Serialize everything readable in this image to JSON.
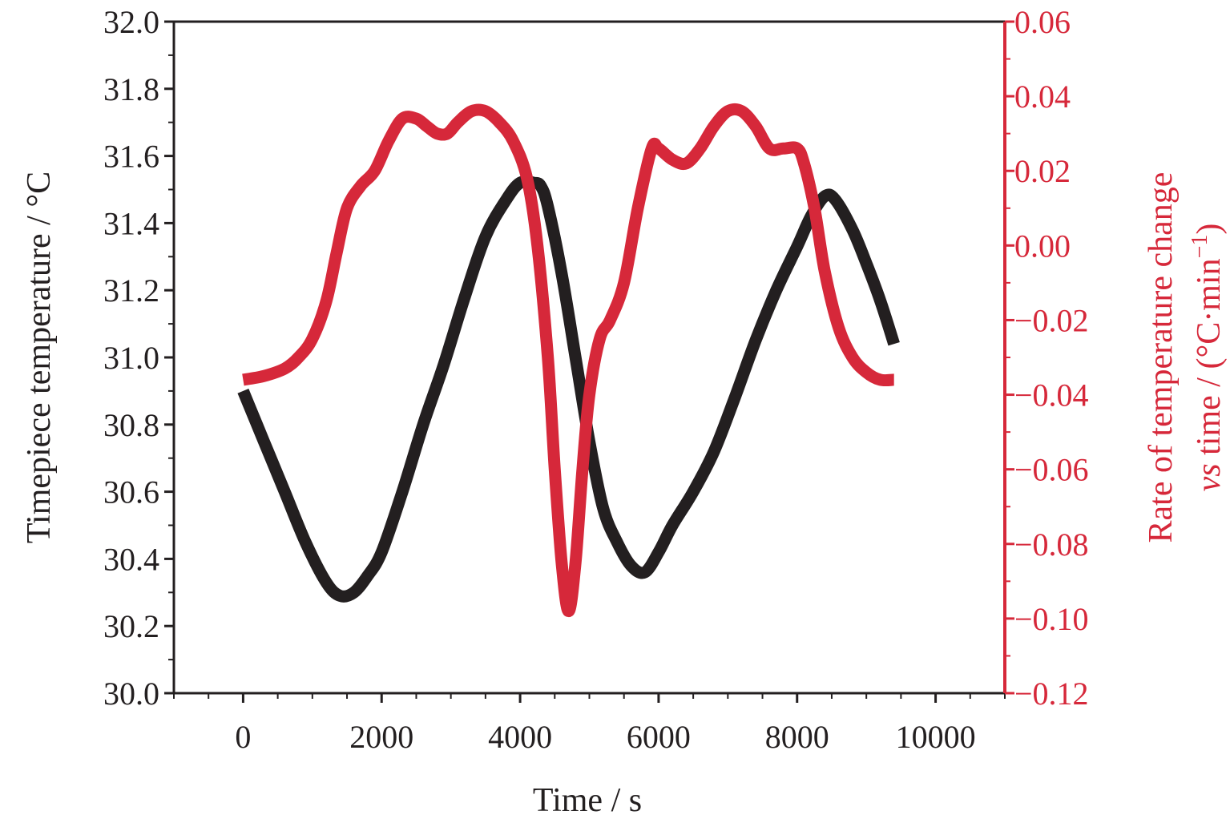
{
  "chart_data": {
    "type": "line",
    "xlabel": "Time / s",
    "ylabel_left": "Timepiece temperature / °C",
    "ylabel_right_line1": "Rate of temperature change",
    "ylabel_right_line2_italic": "vs",
    "ylabel_right_line2_rest": " time / (°C·min",
    "ylabel_right_line2_sup": "−1",
    "ylabel_right_line2_end": ")",
    "xlim": [
      -1000,
      11000
    ],
    "x_ticks": [
      0,
      2000,
      4000,
      6000,
      8000,
      10000
    ],
    "x_tick_labels": [
      "0",
      "2000",
      "4000",
      "6000",
      "8000",
      "10000"
    ],
    "ylim_left": [
      30.0,
      32.0
    ],
    "y_left_ticks": [
      30.0,
      30.2,
      30.4,
      30.6,
      30.8,
      31.0,
      31.2,
      31.4,
      31.6,
      31.8,
      32.0
    ],
    "y_left_tick_labels": [
      "30.0",
      "30.2",
      "30.4",
      "30.6",
      "30.8",
      "31.0",
      "31.2",
      "31.4",
      "31.6",
      "31.8",
      "32.0"
    ],
    "ylim_right": [
      -0.12,
      0.06
    ],
    "y_right_ticks": [
      -0.12,
      -0.1,
      -0.08,
      -0.06,
      -0.04,
      -0.02,
      0.0,
      0.02,
      0.04,
      0.06
    ],
    "y_right_tick_labels": [
      "−0.12",
      "−0.10",
      "−0.08",
      "−0.06",
      "−0.04",
      "−0.02",
      "0.00",
      "0.02",
      "0.04",
      "0.06"
    ],
    "right_axis_color": "#d6283a",
    "series": [
      {
        "axis": "left",
        "color": "#231f20",
        "x": [
          0,
          300,
          600,
          900,
          1200,
          1400,
          1600,
          1800,
          2000,
          2300,
          2600,
          2900,
          3200,
          3500,
          3800,
          4000,
          4200,
          4300,
          4400,
          4600,
          4800,
          5000,
          5200,
          5400,
          5600,
          5800,
          6000,
          6200,
          6500,
          6800,
          7100,
          7400,
          7700,
          8000,
          8200,
          8400,
          8550,
          8800,
          9000,
          9200,
          9400
        ],
        "values": [
          30.9,
          30.75,
          30.6,
          30.45,
          30.33,
          30.29,
          30.3,
          30.35,
          30.42,
          30.6,
          30.8,
          30.98,
          31.18,
          31.36,
          31.47,
          31.52,
          31.52,
          31.51,
          31.45,
          31.25,
          31.0,
          30.75,
          30.55,
          30.45,
          30.38,
          30.36,
          30.42,
          30.5,
          30.6,
          30.72,
          30.88,
          31.05,
          31.2,
          31.33,
          31.42,
          31.48,
          31.47,
          31.38,
          31.28,
          31.17,
          31.04
        ]
      },
      {
        "axis": "right",
        "color": "#d6283a",
        "x": [
          0,
          300,
          600,
          800,
          1000,
          1200,
          1350,
          1500,
          1700,
          1900,
          2100,
          2300,
          2500,
          2650,
          2800,
          2950,
          3100,
          3300,
          3500,
          3700,
          3900,
          4100,
          4250,
          4400,
          4500,
          4600,
          4700,
          4800,
          4900,
          5000,
          5150,
          5300,
          5500,
          5700,
          5900,
          6000,
          6200,
          6400,
          6600,
          6800,
          7000,
          7200,
          7400,
          7600,
          7800,
          8000,
          8100,
          8250,
          8400,
          8600,
          8800,
          9000,
          9200,
          9400
        ],
        "values": [
          -0.036,
          -0.035,
          -0.033,
          -0.03,
          -0.025,
          -0.015,
          -0.002,
          0.01,
          0.016,
          0.02,
          0.028,
          0.034,
          0.034,
          0.032,
          0.03,
          0.03,
          0.033,
          0.036,
          0.036,
          0.033,
          0.028,
          0.018,
          0.0,
          -0.03,
          -0.06,
          -0.085,
          -0.098,
          -0.085,
          -0.06,
          -0.04,
          -0.025,
          -0.02,
          -0.01,
          0.01,
          0.026,
          0.026,
          0.023,
          0.022,
          0.026,
          0.032,
          0.036,
          0.036,
          0.032,
          0.026,
          0.026,
          0.026,
          0.022,
          0.01,
          -0.007,
          -0.022,
          -0.03,
          -0.034,
          -0.036,
          -0.036
        ]
      }
    ]
  }
}
